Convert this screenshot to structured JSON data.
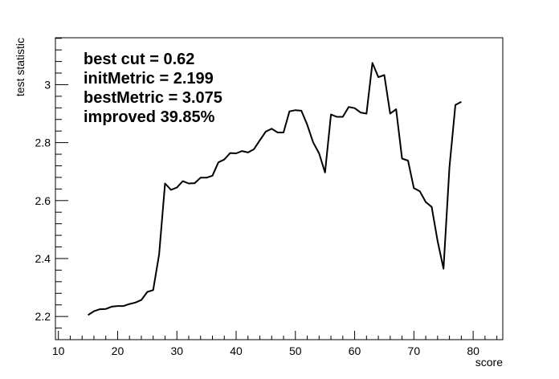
{
  "chart_data": {
    "type": "line",
    "xlabel": "score",
    "ylabel": "test statistic",
    "xlim": [
      9.5,
      85
    ],
    "ylim": [
      2.12,
      3.162
    ],
    "x_ticks": [
      10,
      20,
      30,
      40,
      50,
      60,
      70,
      80
    ],
    "x_tick_labels": [
      "10",
      "20",
      "30",
      "40",
      "50",
      "60",
      "70",
      "80"
    ],
    "y_ticks": [
      2.2,
      2.4,
      2.6,
      2.8,
      3.0
    ],
    "y_tick_labels": [
      "2.2",
      "2.4",
      "2.6",
      "2.8",
      "3"
    ],
    "grid": false,
    "legend": "none",
    "line_color": "#000000",
    "annotations": [
      "best cut = 0.62",
      "initMetric = 2.199",
      "bestMetric = 3.075",
      "improved 39.85%"
    ],
    "series": [
      {
        "x": [
          15,
          16,
          17,
          18,
          19,
          20,
          21,
          22,
          23,
          24,
          25,
          26,
          27,
          28,
          29,
          30,
          31,
          32,
          33,
          34,
          35,
          36,
          37,
          38,
          39,
          40,
          41,
          42,
          43,
          44,
          45,
          46,
          47,
          48,
          49,
          50,
          51,
          52,
          53,
          54,
          55,
          56,
          57,
          58,
          59,
          60,
          61,
          62,
          63,
          64,
          65,
          66,
          67,
          68,
          69,
          70,
          71,
          72,
          73,
          74,
          75,
          76,
          77,
          78
        ],
        "y": [
          2.205,
          2.218,
          2.225,
          2.226,
          2.234,
          2.236,
          2.236,
          2.243,
          2.248,
          2.257,
          2.285,
          2.291,
          2.414,
          2.659,
          2.637,
          2.645,
          2.667,
          2.659,
          2.66,
          2.679,
          2.679,
          2.686,
          2.732,
          2.742,
          2.764,
          2.763,
          2.771,
          2.766,
          2.777,
          2.808,
          2.838,
          2.848,
          2.835,
          2.835,
          2.908,
          2.912,
          2.91,
          2.862,
          2.801,
          2.763,
          2.697,
          2.897,
          2.889,
          2.889,
          2.923,
          2.919,
          2.904,
          2.9,
          3.075,
          3.026,
          3.033,
          2.9,
          2.915,
          2.745,
          2.738,
          2.643,
          2.632,
          2.595,
          2.578,
          2.461,
          2.365,
          2.715,
          2.93,
          2.941
        ]
      }
    ]
  }
}
